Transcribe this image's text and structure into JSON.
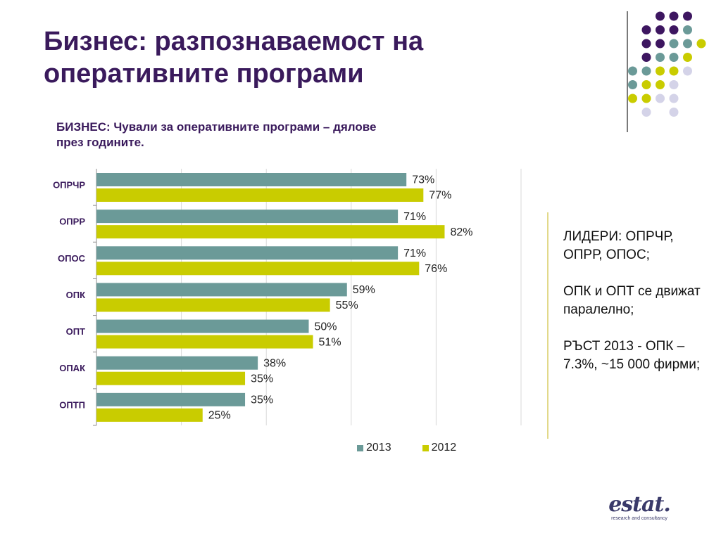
{
  "slide": {
    "title_line1": "Бизнес: разпознаваемост на",
    "title_line2": "оперативните програми",
    "subtitle_line1": "БИЗНЕС: Чували за оперативните програми – дялове",
    "subtitle_line2": "през годините."
  },
  "notes": [
    "ЛИДЕРИ: ОПРЧР, ОПРР, ОПОС;",
    "ОПК и ОПТ се движат паралелно;",
    "РЪСТ 2013 - ОПК – 7.3%, ~15 000 фирми;"
  ],
  "logo": {
    "word": "estat.",
    "tagline": "research and consultancy"
  },
  "colors": {
    "series_2013": "#6b9a98",
    "series_2012": "#c9cc00",
    "title": "#3a1a5c",
    "dot_purple": "#3d1660",
    "dot_teal": "#6b9a98",
    "dot_yellow": "#c9cc00",
    "dot_lavender": "#d4d3e8"
  },
  "dot_rows": [
    [
      "",
      "",
      "purple",
      "purple",
      "purple",
      "",
      ""
    ],
    [
      "",
      "purple",
      "purple",
      "purple",
      "teal",
      "",
      ""
    ],
    [
      "",
      "purple",
      "purple",
      "teal",
      "teal",
      "yellow",
      ""
    ],
    [
      "",
      "purple",
      "teal",
      "teal",
      "yellow",
      "",
      ""
    ],
    [
      "teal",
      "teal",
      "yellow",
      "yellow",
      "lavender",
      "",
      ""
    ],
    [
      "teal",
      "yellow",
      "yellow",
      "lavender",
      "",
      "",
      ""
    ],
    [
      "yellow",
      "yellow",
      "lavender",
      "lavender",
      "",
      "",
      ""
    ],
    [
      "",
      "lavender",
      "",
      "lavender",
      "",
      "",
      ""
    ]
  ],
  "chart_data": {
    "type": "bar",
    "orientation": "horizontal",
    "categories": [
      "ОПРЧР",
      "ОПРР",
      "ОПОС",
      "ОПК",
      "ОПТ",
      "ОПАК",
      "ОПТП"
    ],
    "series": [
      {
        "name": "2013",
        "values": [
          73,
          71,
          71,
          59,
          50,
          38,
          35
        ],
        "labels": [
          "73%",
          "71%",
          "71%",
          "59%",
          "50%",
          "38%",
          "35%"
        ]
      },
      {
        "name": "2012",
        "values": [
          77,
          82,
          76,
          55,
          51,
          35,
          25
        ],
        "labels": [
          "77%",
          "82%",
          "76%",
          "55%",
          "51%",
          "35%",
          "25%"
        ]
      }
    ],
    "xlim": [
      0,
      100
    ],
    "grid": true,
    "legend_position": "bottom"
  }
}
